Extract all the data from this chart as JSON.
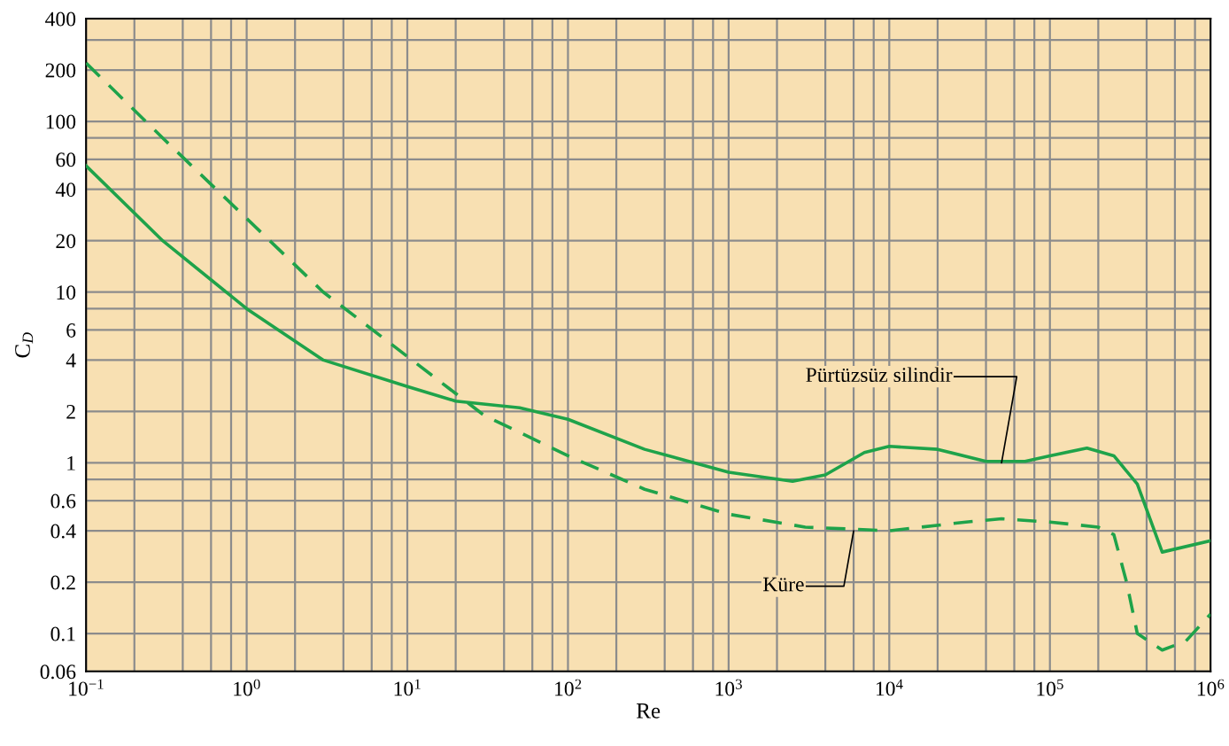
{
  "chart_data": {
    "type": "line",
    "xlabel": "Re",
    "ylabel": "C$_{D}$",
    "log": "xy",
    "grid": true,
    "xlim": [
      0.1,
      1000000
    ],
    "ylim": [
      0.06,
      400
    ],
    "xticks": [
      {
        "value": 0.1,
        "label": "10$^{−1}$"
      },
      {
        "value": 0.2,
        "label": null
      },
      {
        "value": 0.4,
        "label": null
      },
      {
        "value": 0.6,
        "label": null
      },
      {
        "value": 0.8,
        "label": null
      },
      {
        "value": 1,
        "label": "10$^{0}$"
      },
      {
        "value": 2,
        "label": null
      },
      {
        "value": 4,
        "label": null
      },
      {
        "value": 6,
        "label": null
      },
      {
        "value": 8,
        "label": null
      },
      {
        "value": 10,
        "label": "10$^{1}$"
      },
      {
        "value": 20,
        "label": null
      },
      {
        "value": 40,
        "label": null
      },
      {
        "value": 60,
        "label": null
      },
      {
        "value": 80,
        "label": null
      },
      {
        "value": 100,
        "label": "10$^{2}$"
      },
      {
        "value": 200,
        "label": null
      },
      {
        "value": 400,
        "label": null
      },
      {
        "value": 600,
        "label": null
      },
      {
        "value": 800,
        "label": null
      },
      {
        "value": 1000,
        "label": "10$^{3}$"
      },
      {
        "value": 2000,
        "label": null
      },
      {
        "value": 4000,
        "label": null
      },
      {
        "value": 6000,
        "label": null
      },
      {
        "value": 8000,
        "label": null
      },
      {
        "value": 10000,
        "label": "10$^{4}$"
      },
      {
        "value": 20000,
        "label": null
      },
      {
        "value": 40000,
        "label": null
      },
      {
        "value": 60000,
        "label": null
      },
      {
        "value": 80000,
        "label": null
      },
      {
        "value": 100000,
        "label": "10$^{5}$"
      },
      {
        "value": 200000,
        "label": null
      },
      {
        "value": 400000,
        "label": null
      },
      {
        "value": 600000,
        "label": null
      },
      {
        "value": 800000,
        "label": null
      },
      {
        "value": 1000000,
        "label": "10$^{6}$"
      }
    ],
    "yticks": [
      0.06,
      0.1,
      0.2,
      0.4,
      0.6,
      {
        "value": 0.8,
        "label": null
      },
      1,
      2,
      4,
      6,
      {
        "value": 8,
        "label": null
      },
      10,
      20,
      40,
      60,
      {
        "value": 80,
        "label": null
      },
      100,
      200,
      {
        "value": 300,
        "label": null
      },
      400
    ],
    "series": [
      {
        "color": "#1fa34a",
        "line_style": "solid",
        "x": [
          0.1,
          0.3,
          1,
          3,
          10,
          20,
          50,
          100,
          300,
          1000,
          2500,
          4000,
          7000,
          10000,
          20000,
          40000,
          70000,
          100000,
          170000,
          250000,
          350000,
          500000,
          1000000
        ],
        "values": [
          55,
          20,
          8,
          4,
          2.8,
          2.3,
          2.1,
          1.8,
          1.2,
          0.88,
          0.78,
          0.85,
          1.15,
          1.25,
          1.2,
          1.02,
          1.02,
          1.1,
          1.22,
          1.1,
          0.75,
          0.3,
          0.35
        ]
      },
      {
        "color": "#1fa34a",
        "line_style": "dashed",
        "x": [
          0.1,
          0.3,
          1,
          3,
          10,
          30,
          100,
          300,
          1000,
          3000,
          10000,
          30000,
          50000,
          100000,
          200000,
          250000,
          300000,
          350000,
          500000,
          700000,
          1000000
        ],
        "values": [
          220,
          80,
          27,
          10,
          4.2,
          1.9,
          1.1,
          0.7,
          0.5,
          0.42,
          0.4,
          0.45,
          0.47,
          0.45,
          0.42,
          0.38,
          0.2,
          0.1,
          0.08,
          0.09,
          0.13
        ]
      }
    ],
    "annotations": [
      {
        "text": "Pürtüzsüz silindir",
        "x": 50000,
        "y": 1.0
      },
      {
        "text": "Küre",
        "x": 6000,
        "y": 0.4
      }
    ]
  }
}
